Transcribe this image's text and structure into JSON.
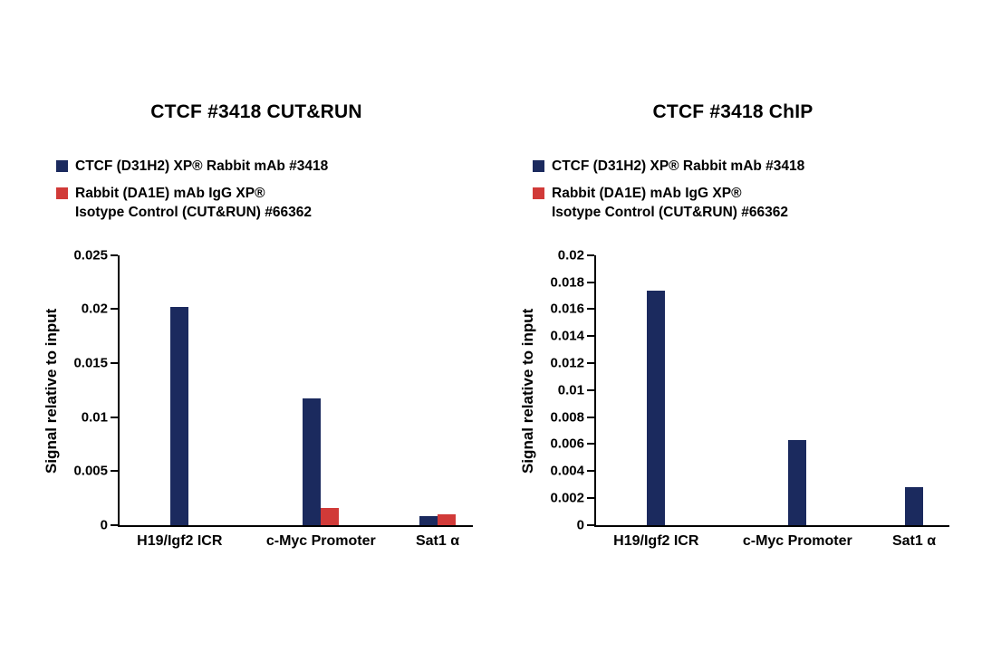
{
  "chart_data": [
    {
      "type": "bar",
      "title": "CTCF #3418 CUT&RUN",
      "ylabel": "Signal relative to input",
      "xlabel": "",
      "ylim": [
        0,
        0.025
      ],
      "yticks": [
        "0",
        "0.005",
        "0.01",
        "0.015",
        "0.02",
        "0.025"
      ],
      "grid": false,
      "legend_position": "top-left",
      "categories": [
        "H19/Igf2 ICR",
        "c-Myc Promoter",
        "Sat1 α"
      ],
      "series": [
        {
          "name": "CTCF (D31H2) XP® Rabbit mAb #3418",
          "color": "#1b2a5e",
          "values": [
            0.0202,
            0.0117,
            0.0008
          ]
        },
        {
          "name": "Rabbit (DA1E) mAb IgG XP®\nIsotype Control (CUT&RUN) #66362",
          "color": "#d13a38",
          "values": [
            0,
            0.0016,
            0.001
          ]
        }
      ]
    },
    {
      "type": "bar",
      "title": "CTCF #3418 ChIP",
      "ylabel": "Signal relative to input",
      "xlabel": "",
      "ylim": [
        0,
        0.02
      ],
      "yticks": [
        "0",
        "0.002",
        "0.004",
        "0.006",
        "0.008",
        "0.01",
        "0.012",
        "0.014",
        "0.016",
        "0.018",
        "0.02"
      ],
      "grid": false,
      "legend_position": "top-left",
      "categories": [
        "H19/Igf2 ICR",
        "c-Myc Promoter",
        "Sat1 α"
      ],
      "series": [
        {
          "name": "CTCF (D31H2) XP® Rabbit mAb #3418",
          "color": "#1b2a5e",
          "values": [
            0.0174,
            0.0063,
            0.0028
          ]
        },
        {
          "name": "Rabbit (DA1E) mAb IgG XP®\nIsotype Control (CUT&RUN) #66362",
          "color": "#d13a38",
          "values": [
            0,
            0,
            0
          ]
        }
      ]
    }
  ]
}
